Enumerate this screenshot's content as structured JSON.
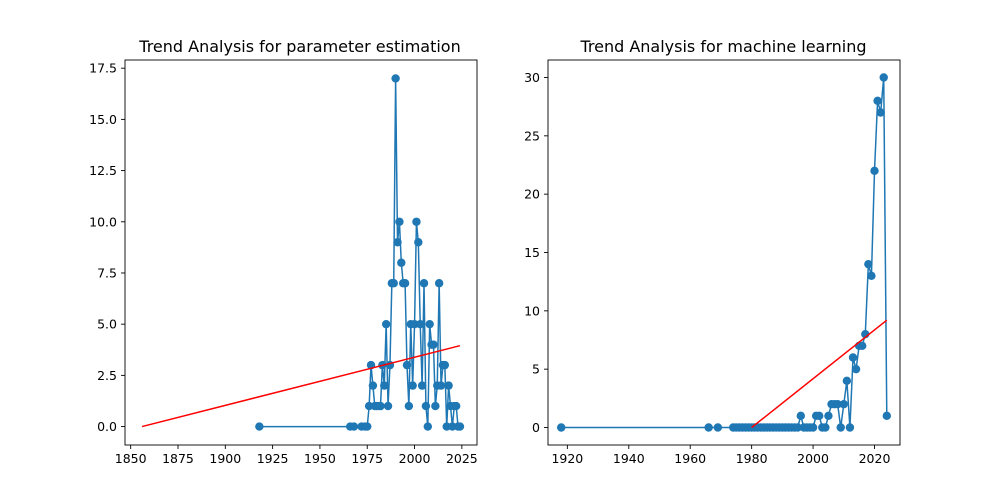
{
  "colors": {
    "series": "#1f77b4",
    "trend": "#ff0000",
    "axes": "#000000",
    "background": "#ffffff"
  },
  "chart_data": [
    {
      "type": "line",
      "title": "Trend Analysis for parameter estimation",
      "xlabel": "",
      "ylabel": "",
      "xlim": [
        1847,
        2033
      ],
      "ylim": [
        -0.9,
        17.9
      ],
      "xticks": [
        1850,
        1875,
        1900,
        1925,
        1950,
        1975,
        2000,
        2025
      ],
      "yticks": [
        0.0,
        2.5,
        5.0,
        7.5,
        10.0,
        12.5,
        15.0,
        17.5
      ],
      "ytick_labels": [
        "0.0",
        "2.5",
        "5.0",
        "7.5",
        "10.0",
        "12.5",
        "15.0",
        "17.5"
      ],
      "grid": false,
      "series": [
        {
          "style": "line-markers",
          "x": [
            1918,
            1966,
            1968,
            1972,
            1974,
            1975,
            1976,
            1977,
            1978,
            1979,
            1980,
            1981,
            1982,
            1983,
            1984,
            1985,
            1986,
            1987,
            1988,
            1989,
            1990,
            1991,
            1992,
            1993,
            1994,
            1995,
            1996,
            1997,
            1998,
            1999,
            2000,
            2001,
            2002,
            2003,
            2004,
            2005,
            2006,
            2007,
            2008,
            2009,
            2010,
            2011,
            2012,
            2013,
            2014,
            2015,
            2016,
            2017,
            2018,
            2019,
            2020,
            2021,
            2022,
            2023,
            2024
          ],
          "y": [
            0,
            0,
            0,
            0,
            0,
            0,
            1,
            3,
            2,
            1,
            1,
            1,
            1,
            3,
            2,
            5,
            1,
            3,
            7,
            7,
            17,
            9,
            10,
            8,
            7,
            7,
            3,
            1,
            5,
            2,
            5,
            10,
            9,
            5,
            2,
            7,
            1,
            0,
            5,
            4,
            4,
            1,
            2,
            7,
            2,
            3,
            3,
            0,
            2,
            1,
            0,
            1,
            1,
            0,
            0
          ]
        },
        {
          "style": "trend-line",
          "x": [
            1856,
            2024
          ],
          "y": [
            0.0,
            3.95
          ]
        }
      ]
    },
    {
      "type": "line",
      "title": "Trend Analysis for machine learning",
      "xlabel": "",
      "ylabel": "",
      "xlim": [
        1913.7,
        2028.3
      ],
      "ylim": [
        -1.5,
        31.5
      ],
      "xticks": [
        1920,
        1940,
        1960,
        1980,
        2000,
        2020
      ],
      "yticks": [
        0,
        5,
        10,
        15,
        20,
        25,
        30
      ],
      "ytick_labels": [
        "0",
        "5",
        "10",
        "15",
        "20",
        "25",
        "30"
      ],
      "grid": false,
      "series": [
        {
          "style": "line-markers",
          "x": [
            1918,
            1966,
            1969,
            1974,
            1975,
            1976,
            1977,
            1978,
            1979,
            1980,
            1981,
            1982,
            1983,
            1984,
            1985,
            1986,
            1987,
            1988,
            1989,
            1990,
            1991,
            1992,
            1993,
            1994,
            1995,
            1996,
            1997,
            1998,
            1999,
            2000,
            2001,
            2002,
            2003,
            2004,
            2005,
            2006,
            2007,
            2008,
            2009,
            2010,
            2011,
            2012,
            2013,
            2014,
            2015,
            2016,
            2017,
            2018,
            2019,
            2020,
            2021,
            2022,
            2023,
            2024
          ],
          "y": [
            0,
            0,
            0,
            0,
            0,
            0,
            0,
            0,
            0,
            0,
            0,
            0,
            0,
            0,
            0,
            0,
            0,
            0,
            0,
            0,
            0,
            0,
            0,
            0,
            0,
            1,
            0,
            0,
            0,
            0,
            1,
            1,
            0,
            0,
            1,
            2,
            2,
            2,
            0,
            2,
            4,
            0,
            6,
            5,
            7,
            7,
            8,
            14,
            13,
            22,
            28,
            27,
            30,
            1
          ]
        },
        {
          "style": "trend-line",
          "x": [
            1980,
            2024
          ],
          "y": [
            0.0,
            9.2
          ]
        }
      ]
    }
  ]
}
